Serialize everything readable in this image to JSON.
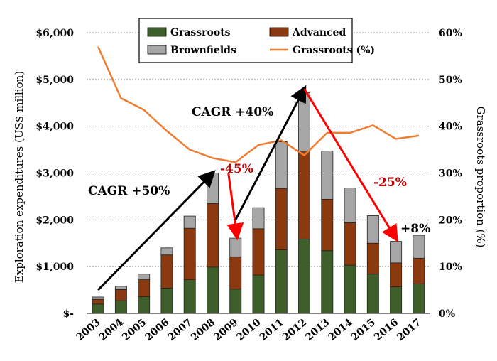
{
  "chart_data": {
    "type": "bar",
    "stacked": true,
    "categories": [
      "2003",
      "2004",
      "2005",
      "2006",
      "2007",
      "2008",
      "2009",
      "2010",
      "2011",
      "2012",
      "2013",
      "2014",
      "2015",
      "2016",
      "2017"
    ],
    "series": [
      {
        "name": "Grassroots",
        "color": "#3e5f2a",
        "values": [
          200,
          270,
          360,
          540,
          720,
          990,
          520,
          820,
          1360,
          1590,
          1340,
          1030,
          840,
          570,
          630
        ]
      },
      {
        "name": "Advanced",
        "color": "#8b3a10",
        "values": [
          100,
          240,
          360,
          710,
          1100,
          1360,
          690,
          990,
          1310,
          1880,
          1100,
          910,
          660,
          510,
          550
        ]
      },
      {
        "name": "Brownfields",
        "color": "#a6a6a6",
        "values": [
          50,
          70,
          120,
          150,
          260,
          650,
          400,
          450,
          1000,
          1250,
          1030,
          740,
          590,
          460,
          490
        ]
      }
    ],
    "line_series": {
      "name": "Grassroots (%)",
      "color": "#ed7d31",
      "axis": "right",
      "values": [
        57,
        46,
        43.5,
        39,
        35,
        33.2,
        32.3,
        36,
        37,
        33.8,
        38.6,
        38.6,
        40.2,
        37.3,
        38
      ]
    },
    "ylabel": "Exploration expenditures (US$ million)",
    "y2label": "Grassroots proportion (%)",
    "ylim": [
      0,
      6000
    ],
    "y2lim": [
      0,
      60
    ],
    "yticks": [
      "$-",
      "$1,000",
      "$2,000",
      "$3,000",
      "$4,000",
      "$5,000",
      "$6,000"
    ],
    "y2ticks": [
      "0%",
      "10%",
      "20%",
      "30%",
      "40%",
      "50%",
      "60%"
    ],
    "grid": "horizontal-dotted",
    "legend": {
      "placement": "top-center",
      "entries": [
        "Grassroots",
        "Advanced",
        "Brownfields",
        "Grassroots (%)"
      ]
    },
    "annotations": [
      {
        "text": "CAGR +50%",
        "color": "#000000"
      },
      {
        "text": "CAGR +40%",
        "color": "#000000"
      },
      {
        "text": "-45%",
        "color": "#c00000"
      },
      {
        "text": "-25%",
        "color": "#c00000"
      },
      {
        "text": "+8%",
        "color": "#000000"
      }
    ],
    "arrows": [
      {
        "from": [
          "2003",
          500
        ],
        "to": [
          "2008",
          3000
        ],
        "color": "#000000"
      },
      {
        "from": [
          "2009",
          3000
        ],
        "to": [
          "2009",
          1650
        ],
        "color": "#ff0000"
      },
      {
        "from": [
          "2009",
          2000
        ],
        "to": [
          "2012",
          4800
        ],
        "color": "#000000"
      },
      {
        "from": [
          "2012",
          4800
        ],
        "to": [
          "2016",
          1600
        ],
        "color": "#ff0000"
      }
    ]
  }
}
